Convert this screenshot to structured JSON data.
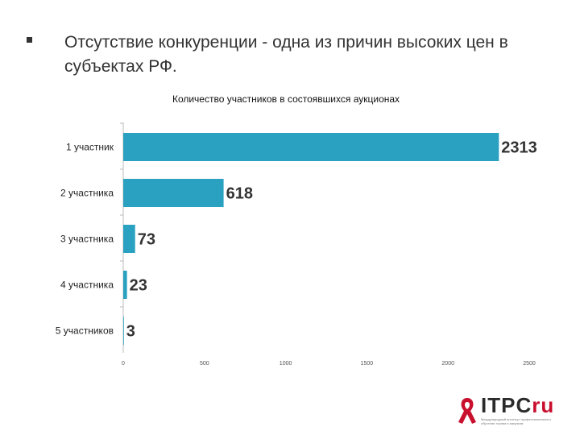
{
  "slide": {
    "title": "Отсутствие конкуренции - одна из причин высоких цен в субъектах РФ."
  },
  "chart_data": {
    "type": "bar",
    "orientation": "horizontal",
    "title": "Количество участников в состоявшихся аукционах",
    "categories": [
      "1 участник",
      "2 участника",
      "3 участника",
      "4 участника",
      "5 участников"
    ],
    "values": [
      2313,
      618,
      73,
      23,
      3
    ],
    "xlim": [
      0,
      2500
    ],
    "xticks": [
      "0",
      "500",
      "1000",
      "1500",
      "2000",
      "2500"
    ],
    "xtick_values": [
      0,
      500,
      1000,
      1500,
      2000,
      2500
    ],
    "bar_color": "#2aa1c0",
    "grid": false,
    "legend": "none"
  },
  "logo": {
    "brand_main": "ITPC",
    "brand_accent": "ru",
    "subtitle_line1": "Международный институт профессионального",
    "subtitle_line2": "обучения торгам и закупкам",
    "accent_color": "#c8102e"
  }
}
